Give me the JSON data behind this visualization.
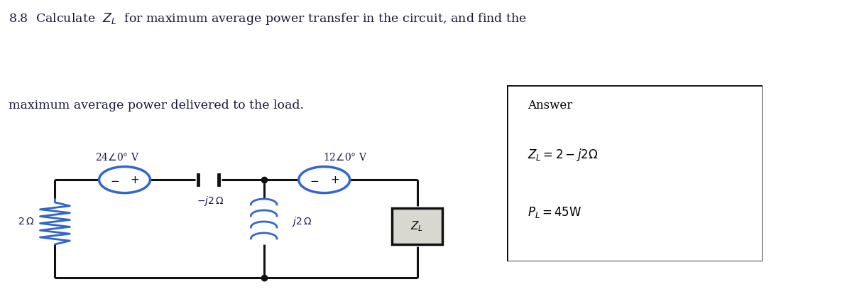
{
  "title_line1": "8.8  Calculate  $Z_L$  for maximum average power transfer in the circuit, and find the",
  "title_line2": "maximum average power delivered to the load.",
  "circuit_bg": "#b8bfb8",
  "v1_label": "24$\\angle$0° V",
  "v2_label": "12$\\angle$0° V",
  "z1_label": "$-j2\\,\\Omega$",
  "z2_label": "$j2\\,\\Omega$",
  "z3_label": "$2\\,\\Omega$",
  "zl_label": "$Z_L$",
  "answer_title": "Answer",
  "answer_zl": "$Z_L = 2 - j2\\Omega$",
  "answer_pl": "$P_L = 45\\mathrm{W}$",
  "fig_width": 12.0,
  "fig_height": 4.28,
  "wire_color": "#111111",
  "component_color": "#3366cc",
  "text_color": "#1a1a4e"
}
